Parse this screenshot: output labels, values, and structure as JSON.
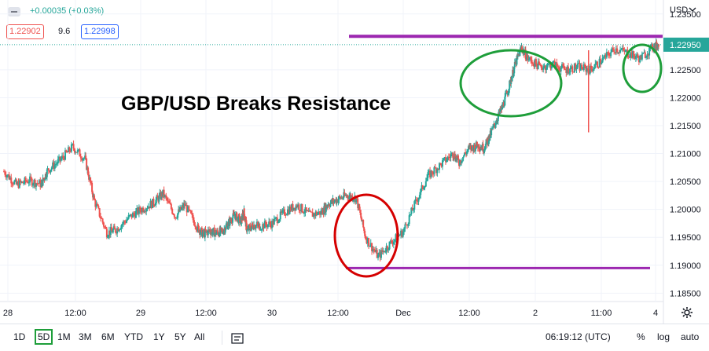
{
  "header": {
    "change": "+0.00035 (+0.03%)",
    "bid": "1.22902",
    "spread": "9.6",
    "ask": "1.22998"
  },
  "currency_label": "USD",
  "current_price": "1.22950",
  "annotation_title": "GBP/USD Breaks Resistance",
  "toolbar": {
    "timeframes": [
      "1D",
      "5D",
      "1M",
      "3M",
      "6M",
      "YTD",
      "1Y",
      "5Y",
      "All"
    ],
    "active_timeframe": "5D",
    "time": "06:19:12 (UTC)",
    "percent": "%",
    "log": "log",
    "auto": "auto"
  },
  "colors": {
    "up": "#26a69a",
    "down": "#ef5350",
    "resistance_line": "#9c27b0",
    "circle_green": "#1e9e3a",
    "circle_red": "#d50000"
  },
  "chart_data": {
    "type": "line",
    "title": "GBP/USD Breaks Resistance",
    "x_ticks": [
      "28",
      "12:00",
      "29",
      "12:00",
      "30",
      "12:00",
      "Dec",
      "12:00",
      "2",
      "12:00",
      "11:00",
      "4"
    ],
    "y_ticks": [
      1.185,
      1.19,
      1.195,
      1.2,
      1.205,
      1.21,
      1.215,
      1.22,
      1.225,
      1.2295,
      1.235
    ],
    "ylim": [
      1.1835,
      1.2375
    ],
    "x": [
      0,
      4,
      8,
      12,
      14,
      18,
      22,
      26,
      29,
      33,
      36,
      40,
      44,
      48,
      51,
      55,
      58,
      62,
      64,
      66,
      68,
      70,
      72,
      74,
      76,
      77,
      78,
      80,
      82,
      86,
      90,
      94,
      98,
      102,
      104,
      107,
      110,
      113,
      116,
      120,
      124,
      128,
      132,
      136,
      140,
      144,
      146,
      149,
      152,
      154,
      156,
      158,
      160,
      162,
      164,
      166,
      168,
      172,
      176,
      180,
      184,
      188,
      192,
      196,
      200,
      204,
      208,
      210
    ],
    "series": [
      {
        "values": [
          1.2068,
          1.2044,
          1.2052,
          1.2045,
          1.207,
          1.2088,
          1.2112,
          1.209,
          1.2015,
          1.1958,
          1.1964,
          1.1985,
          1.2,
          1.2012,
          1.2028,
          1.1988,
          1.2008,
          1.1968,
          1.1955,
          1.1962,
          1.1958,
          1.196,
          1.1975,
          1.199,
          1.1978,
          1.1995,
          1.1962,
          1.1972,
          1.197,
          1.1975,
          1.1995,
          1.2008,
          1.199,
          1.1995,
          1.201,
          1.2018,
          1.2025,
          1.202,
          1.195,
          1.1915,
          1.194,
          1.196,
          1.2012,
          1.206,
          1.208,
          1.21,
          1.2085,
          1.2108,
          1.2115,
          1.211,
          1.2133,
          1.216,
          1.2185,
          1.222,
          1.226,
          1.229,
          1.227,
          1.2255,
          1.226,
          1.225,
          1.2255,
          1.225,
          1.2268,
          1.2288,
          1.228,
          1.227,
          1.229,
          1.2295
        ]
      }
    ],
    "resistance": 1.231,
    "support": 1.1895
  }
}
